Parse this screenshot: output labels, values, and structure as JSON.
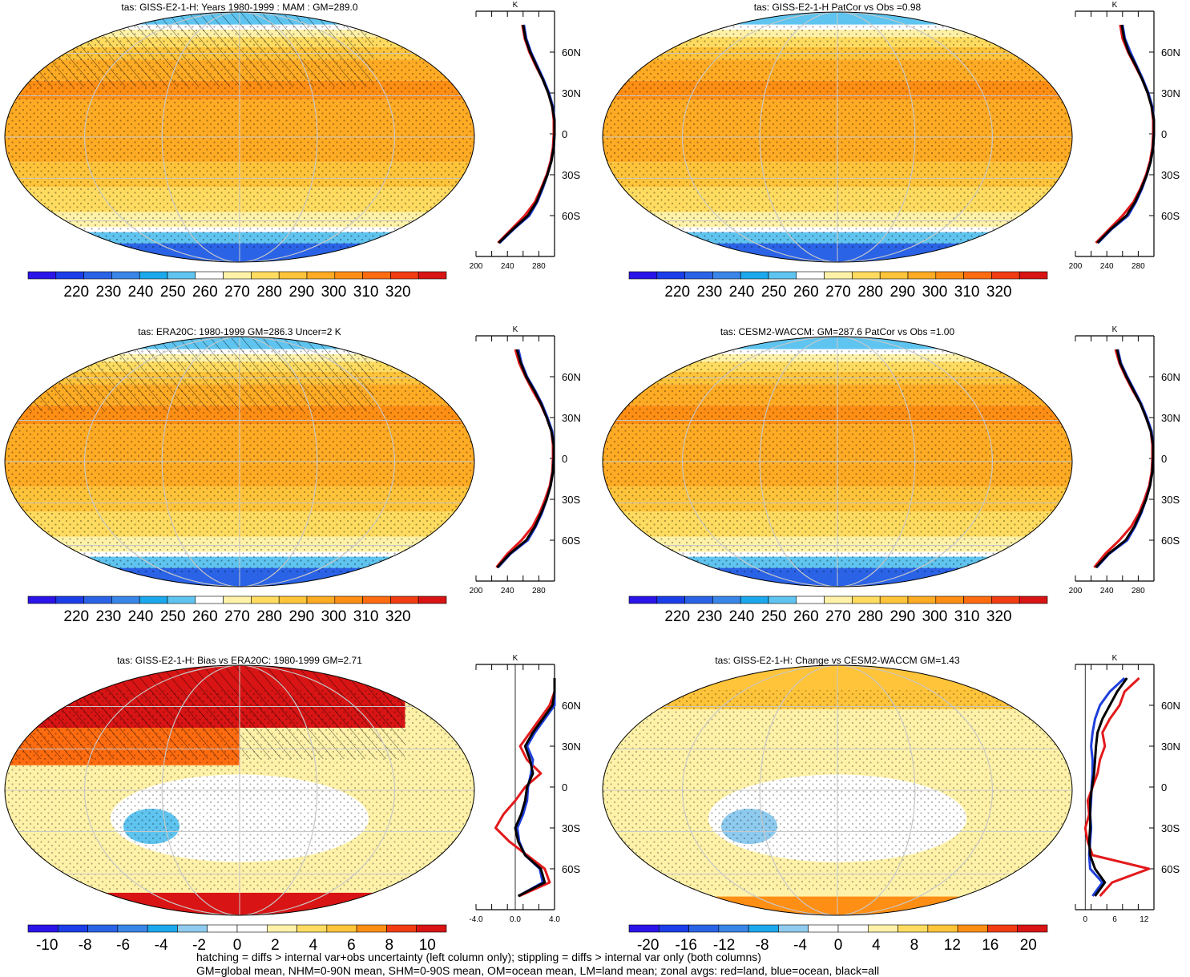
{
  "figure": {
    "footnote_1": "hatching = diffs > internal var+obs uncertainty (left column only); stippling = diffs > internal var only (both columns)",
    "footnote_2": "GM=global mean, NHM=0-90N mean, SHM=0-90S mean, OM=ocean mean, LM=land mean; zonal avgs: red=land, blue=ocean, black=all"
  },
  "chart_data": [
    {
      "type": "heatmap",
      "title": "tas: GISS-E2-1-H: Years 1980-1999 : MAM : GM=289.0",
      "colorbar_ticks": [
        "220",
        "230",
        "240",
        "250",
        "260",
        "270",
        "280",
        "290",
        "300",
        "310",
        "320"
      ],
      "zonal_panel": {
        "type": "line",
        "unit_label": "K",
        "x_ticks": [
          "200",
          "240",
          "280"
        ],
        "xlim": [
          200,
          300
        ],
        "y_ticks": [
          "60N",
          "30N",
          "0",
          "30S",
          "60S"
        ],
        "latitudes": [
          -80,
          -70,
          -60,
          -50,
          -40,
          -30,
          -20,
          -10,
          0,
          10,
          20,
          30,
          40,
          50,
          60,
          70,
          80
        ],
        "series": [
          {
            "color": "#e31a1c",
            "values": [
              228,
              245,
              262,
              275,
              283,
              290,
              295,
              298,
              299,
              299,
              297,
              292,
              285,
              276,
              268,
              262,
              259
            ]
          },
          {
            "color": "#1f3fdc",
            "values": [
              230,
              248,
              268,
              278,
              285,
              291,
              296,
              299,
              300,
              300,
              298,
              293,
              286,
              278,
              270,
              264,
              261
            ]
          },
          {
            "color": "#000000",
            "values": [
              229,
              247,
              266,
              277,
              284,
              291,
              296,
              299,
              300,
              300,
              297,
              292,
              285,
              277,
              269,
              263,
              260
            ]
          }
        ]
      }
    },
    {
      "type": "heatmap",
      "title": "tas: GISS-E2-1-H PatCor vs Obs =0.98",
      "colorbar_ticks": [
        "220",
        "230",
        "240",
        "250",
        "260",
        "270",
        "280",
        "290",
        "300",
        "310",
        "320"
      ],
      "zonal_panel": {
        "type": "line",
        "unit_label": "K",
        "x_ticks": [
          "200",
          "240",
          "280"
        ],
        "xlim": [
          200,
          300
        ],
        "y_ticks": [
          "60N",
          "30N",
          "0",
          "30S",
          "60S"
        ],
        "latitudes": [
          -80,
          -70,
          -60,
          -50,
          -40,
          -30,
          -20,
          -10,
          0,
          10,
          20,
          30,
          40,
          50,
          60,
          70,
          80
        ],
        "series": [
          {
            "color": "#e31a1c",
            "values": [
              226,
              243,
              260,
              274,
              283,
              290,
              295,
              298,
              299,
              299,
              297,
              292,
              285,
              276,
              267,
              260,
              257
            ]
          },
          {
            "color": "#1f3fdc",
            "values": [
              229,
              246,
              267,
              277,
              285,
              291,
              296,
              299,
              300,
              300,
              298,
              293,
              286,
              278,
              270,
              263,
              260
            ]
          },
          {
            "color": "#000000",
            "values": [
              228,
              245,
              265,
              276,
              284,
              291,
              296,
              299,
              300,
              300,
              297,
              292,
              285,
              277,
              268,
              262,
              259
            ]
          }
        ]
      }
    },
    {
      "type": "heatmap",
      "title": "tas: ERA20C: 1980-1999 GM=286.3 Uncer=2 K",
      "colorbar_ticks": [
        "220",
        "230",
        "240",
        "250",
        "260",
        "270",
        "280",
        "290",
        "300",
        "310",
        "320"
      ],
      "zonal_panel": {
        "type": "line",
        "unit_label": "K",
        "x_ticks": [
          "200",
          "240",
          "280"
        ],
        "xlim": [
          200,
          300
        ],
        "y_ticks": [
          "60N",
          "30N",
          "0",
          "30S",
          "60S"
        ],
        "latitudes": [
          -80,
          -70,
          -60,
          -50,
          -40,
          -30,
          -20,
          -10,
          0,
          10,
          20,
          30,
          40,
          50,
          60,
          70,
          80
        ],
        "series": [
          {
            "color": "#e31a1c",
            "values": [
              226,
              240,
              258,
              272,
              281,
              288,
              294,
              297,
              298,
              298,
              296,
              290,
              282,
              272,
              263,
              255,
              250
            ]
          },
          {
            "color": "#1f3fdc",
            "values": [
              228,
              244,
              266,
              276,
              284,
              290,
              295,
              298,
              299,
              299,
              297,
              291,
              284,
              275,
              265,
              258,
              254
            ]
          },
          {
            "color": "#000000",
            "values": [
              227,
              243,
              264,
              275,
              283,
              290,
              295,
              298,
              299,
              299,
              296,
              290,
              283,
              274,
              264,
              257,
              252
            ]
          }
        ]
      }
    },
    {
      "type": "heatmap",
      "title": "tas: CESM2-WACCM: GM=287.6 PatCor vs Obs =1.00",
      "colorbar_ticks": [
        "220",
        "230",
        "240",
        "250",
        "260",
        "270",
        "280",
        "290",
        "300",
        "310",
        "320"
      ],
      "zonal_panel": {
        "type": "line",
        "unit_label": "K",
        "x_ticks": [
          "200",
          "240",
          "280"
        ],
        "xlim": [
          200,
          300
        ],
        "y_ticks": [
          "60N",
          "30N",
          "0",
          "30S",
          "60S"
        ],
        "latitudes": [
          -80,
          -70,
          -60,
          -50,
          -40,
          -30,
          -20,
          -10,
          0,
          10,
          20,
          30,
          40,
          50,
          60,
          70,
          80
        ],
        "series": [
          {
            "color": "#e31a1c",
            "values": [
              224,
              238,
              256,
              271,
              281,
              288,
              294,
              297,
              298,
              298,
              296,
              290,
              283,
              273,
              264,
              256,
              251
            ]
          },
          {
            "color": "#1f3fdc",
            "values": [
              227,
              243,
              266,
              276,
              284,
              290,
              295,
              298,
              299,
              299,
              297,
              291,
              284,
              275,
              266,
              258,
              254
            ]
          },
          {
            "color": "#000000",
            "values": [
              226,
              242,
              264,
              275,
              283,
              290,
              295,
              298,
              299,
              299,
              296,
              290,
              283,
              274,
              265,
              257,
              253
            ]
          }
        ]
      }
    },
    {
      "type": "heatmap",
      "title": "tas: GISS-E2-1-H: Bias vs ERA20C: 1980-1999 GM=2.71",
      "colorbar_ticks": [
        "-10",
        "-8",
        "-6",
        "-4",
        "-2",
        "0",
        "2",
        "4",
        "6",
        "8",
        "10"
      ],
      "zonal_panel": {
        "type": "line",
        "unit_label": "K",
        "x_ticks": [
          "-4.0",
          "0.0",
          "4.0"
        ],
        "xlim": [
          -4,
          4
        ],
        "y_ticks": [
          "60N",
          "30N",
          "0",
          "30S",
          "60S"
        ],
        "latitudes": [
          -80,
          -70,
          -60,
          -50,
          -40,
          -30,
          -20,
          -10,
          0,
          10,
          20,
          30,
          40,
          50,
          60,
          70,
          80
        ],
        "series": [
          {
            "color": "#e31a1c",
            "values": [
              0.4,
              3.5,
              3.0,
              1.2,
              -0.6,
              -2.0,
              -1.2,
              0.0,
              1.0,
              2.6,
              1.2,
              0.5,
              1.5,
              2.5,
              3.5,
              4.0,
              4.0
            ]
          },
          {
            "color": "#1f3fdc",
            "values": [
              0.3,
              2.8,
              2.5,
              1.0,
              0.4,
              0.2,
              0.8,
              1.2,
              1.3,
              1.6,
              1.8,
              1.2,
              2.0,
              3.0,
              4.0,
              4.0,
              4.0
            ]
          },
          {
            "color": "#000000",
            "values": [
              0.3,
              3.0,
              2.6,
              1.0,
              0.3,
              0.0,
              0.6,
              1.0,
              1.2,
              1.8,
              1.5,
              1.0,
              1.8,
              2.8,
              3.8,
              4.0,
              4.0
            ]
          }
        ]
      }
    },
    {
      "type": "heatmap",
      "title": "tas: GISS-E2-1-H: Change vs CESM2-WACCM GM=1.43",
      "colorbar_ticks": [
        "-20",
        "-16",
        "-12",
        "-8",
        "-4",
        "0",
        "4",
        "8",
        "12",
        "16",
        "20"
      ],
      "zonal_panel": {
        "type": "line",
        "unit_label": "K",
        "x_ticks": [
          "0",
          "6",
          "12"
        ],
        "xlim": [
          -2,
          14
        ],
        "y_ticks": [
          "60N",
          "30N",
          "0",
          "30S",
          "60S"
        ],
        "latitudes": [
          -80,
          -70,
          -60,
          -50,
          -40,
          -30,
          -20,
          -10,
          0,
          10,
          20,
          30,
          40,
          50,
          60,
          70,
          80
        ],
        "series": [
          {
            "color": "#e31a1c",
            "values": [
              3.0,
              5.5,
              13.0,
              1.5,
              0.5,
              0.0,
              0.8,
              0.5,
              1.5,
              2.5,
              3.0,
              4.0,
              3.5,
              5.0,
              7.0,
              8.0,
              11.0
            ]
          },
          {
            "color": "#1f3fdc",
            "values": [
              1.5,
              3.5,
              1.0,
              0.8,
              1.0,
              1.2,
              1.0,
              1.2,
              1.3,
              1.5,
              1.5,
              1.2,
              1.5,
              2.0,
              3.0,
              5.0,
              8.0
            ]
          },
          {
            "color": "#000000",
            "values": [
              2.0,
              4.0,
              2.0,
              1.0,
              0.8,
              1.0,
              1.0,
              1.0,
              1.4,
              1.8,
              2.0,
              2.2,
              2.5,
              3.5,
              5.0,
              6.5,
              8.5
            ]
          }
        ]
      }
    }
  ]
}
